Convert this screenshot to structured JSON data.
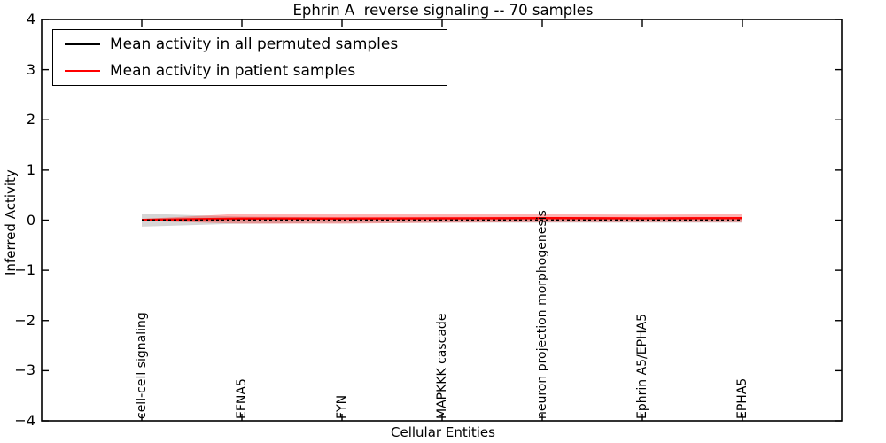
{
  "chart_data": {
    "type": "line",
    "title": "Ephrin A  reverse signaling -- 70 samples",
    "xlabel": "Cellular Entities",
    "ylabel": "Inferred Activity",
    "ylim": [
      -4,
      4
    ],
    "xlim_categories": [
      -1,
      7
    ],
    "grid": false,
    "legend_position": "upper left",
    "x_tick_rotation": 90,
    "y_ticks": [
      "4",
      "3",
      "2",
      "1",
      "0",
      "−1",
      "−2",
      "−3",
      "−4"
    ],
    "y_tick_values": [
      4,
      3,
      2,
      1,
      0,
      -1,
      -2,
      -3,
      -4
    ],
    "categories": [
      "cell-cell signaling",
      "EFNA5",
      "FYN",
      "MAPKKK cascade",
      "neuron projection morphogenesis",
      "Ephrin A5/EPHA5",
      "EPHA5"
    ],
    "series": [
      {
        "name": "Mean activity in all permuted samples",
        "color": "#000000",
        "line_style": "dashed",
        "values": [
          0.0,
          0.0,
          0.0,
          0.0,
          0.0,
          0.0,
          0.0
        ],
        "band": [
          0.13,
          0.07,
          0.055,
          0.05,
          0.05,
          0.05,
          0.05
        ],
        "band_color": "#888888",
        "band_opacity": 0.35
      },
      {
        "name": "Mean activity in patient samples",
        "color": "#ff0000",
        "line_style": "solid",
        "values": [
          0.005,
          0.03,
          0.03,
          0.035,
          0.04,
          0.035,
          0.04
        ],
        "band": [
          0.02,
          0.1,
          0.1,
          0.085,
          0.08,
          0.075,
          0.08
        ],
        "band_color": "#ff0000",
        "band_opacity": 0.3
      }
    ]
  }
}
